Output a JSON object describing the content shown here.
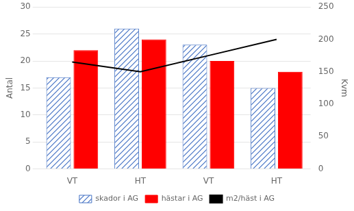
{
  "chart_data": {
    "type": "bar",
    "categories": [
      "VT",
      "HT",
      "VT",
      "HT"
    ],
    "series": [
      {
        "name": "skador i AG",
        "color": "#4472C4",
        "values": [
          17,
          26,
          23,
          15
        ]
      },
      {
        "name": "hästar i AG",
        "color": "#FF0000",
        "values": [
          22,
          24,
          20,
          18
        ]
      },
      {
        "name": "m2/häst i AG",
        "color": "#000000",
        "values": [
          165,
          150,
          175,
          200
        ],
        "type": "line",
        "axis": "y2"
      }
    ],
    "ylabel": "Antal",
    "y2label": "Kvm",
    "ylim": [
      0,
      30
    ],
    "yticks": [
      0,
      5,
      10,
      15,
      20,
      25,
      30
    ],
    "y2lim": [
      0,
      250
    ],
    "y2ticks": [
      0,
      50,
      100,
      150,
      200,
      250
    ],
    "grid": true,
    "legend": "bottom"
  }
}
